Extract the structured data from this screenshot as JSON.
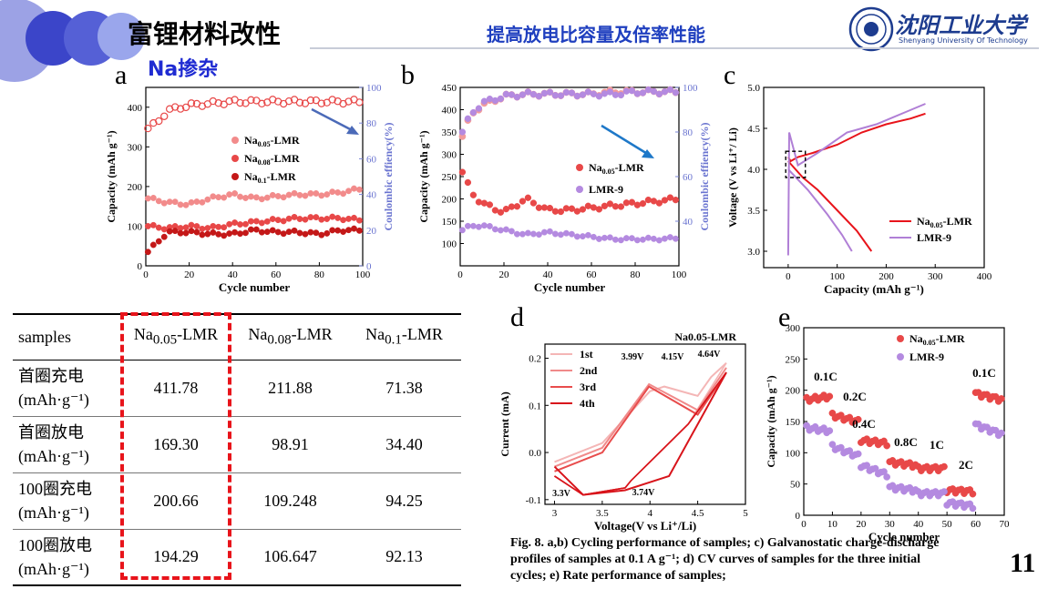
{
  "header": {
    "title": "富锂材料改性",
    "center_title": "提高放电比容量及倍率性能",
    "logo_text": "沈阳工业大学",
    "logo_subtitle": "Shenyang University Of Technology"
  },
  "section_label": "Na掺杂",
  "panel_labels": {
    "a": "a",
    "b": "b",
    "c": "c",
    "d": "d",
    "e": "e"
  },
  "page_number": "11",
  "caption": {
    "line1": "Fig. 8. a,b) Cycling performance of samples; c) Galvanostatic charge-discharge",
    "line2": "profiles of samples at 0.1 A g⁻¹; d) CV curves of samples for the three initial",
    "line3": "cycles; e) Rate performance of samples;"
  },
  "table": {
    "header": [
      "samples",
      "Na0.05-LMR",
      "Na0.08-LMR",
      "Na0.1-LMR"
    ],
    "rows": [
      {
        "label1": "首圈充电",
        "label2": "(mAh·g⁻¹)",
        "values": [
          "411.78",
          "211.88",
          "71.38"
        ]
      },
      {
        "label1": "首圈放电",
        "label2": "(mAh·g⁻¹)",
        "values": [
          "169.30",
          "98.91",
          "34.40"
        ]
      },
      {
        "label1": "100圈充电",
        "label2": "(mAh·g⁻¹)",
        "values": [
          "200.66",
          "109.248",
          "94.25"
        ]
      },
      {
        "label1": "100圈放电",
        "label2": "(mAh·g⁻¹)",
        "values": [
          "194.29",
          "106.647",
          "92.13"
        ]
      }
    ]
  },
  "colors": {
    "red_dash": "#e8141b",
    "title_blue": "#1f3fbf",
    "circle_dark": "#4b55d0",
    "circle_light": "#9aa6ec"
  },
  "chart_data": [
    {
      "id": "a",
      "type": "scatter",
      "xlabel": "Cycle number",
      "ylabel": "Capacity (mAh g⁻¹)",
      "y2label": "Coulombic effiency(%)",
      "xlim": [
        0,
        100
      ],
      "ylim": [
        0,
        450
      ],
      "y2lim": [
        0,
        100
      ],
      "xticks": [
        0,
        20,
        40,
        60,
        80,
        100
      ],
      "yticks": [
        0,
        100,
        200,
        300,
        400
      ],
      "y2ticks": [
        0,
        20,
        40,
        60,
        80,
        100
      ],
      "legend": {
        "placement": "center",
        "entries": [
          "Na0.05-LMR",
          "Na0.08-LMR",
          "Na0.1-LMR"
        ]
      },
      "series": [
        {
          "name": "Na0.05-LMR",
          "color": "#f28b8b",
          "x": [
            1,
            10,
            20,
            30,
            40,
            50,
            60,
            70,
            80,
            90,
            100
          ],
          "values": [
            170,
            160,
            155,
            170,
            180,
            170,
            175,
            180,
            180,
            185,
            195
          ]
        },
        {
          "name": "Na0.08-LMR",
          "color": "#e84848",
          "x": [
            1,
            10,
            20,
            30,
            40,
            50,
            60,
            70,
            80,
            90,
            100
          ],
          "values": [
            100,
            95,
            100,
            95,
            105,
            110,
            115,
            120,
            120,
            120,
            115
          ]
        },
        {
          "name": "Na0.1-LMR",
          "color": "#c41818",
          "x": [
            1,
            10,
            20,
            30,
            40,
            50,
            60,
            70,
            80,
            90,
            100
          ],
          "values": [
            35,
            85,
            85,
            80,
            80,
            90,
            85,
            85,
            80,
            90,
            90
          ]
        },
        {
          "name": "Coulombic efficiency",
          "axis": "y2",
          "color": "#e84848",
          "x": [
            1,
            5,
            10,
            20,
            30,
            40,
            50,
            60,
            70,
            80,
            90,
            100
          ],
          "values": [
            77,
            80,
            87,
            90,
            91,
            92,
            92,
            92,
            92,
            92,
            92,
            92
          ]
        }
      ]
    },
    {
      "id": "b",
      "type": "scatter",
      "xlabel": "Cycle number",
      "ylabel": "Capacity (mAh g⁻¹)",
      "y2label": "Coulombic effiency(%)",
      "xlim": [
        0,
        100
      ],
      "ylim": [
        50,
        450
      ],
      "y2lim": [
        20,
        100
      ],
      "xticks": [
        0,
        20,
        40,
        60,
        80,
        100
      ],
      "yticks": [
        100,
        150,
        200,
        250,
        300,
        350,
        400,
        450
      ],
      "y2ticks": [
        40,
        60,
        80,
        100
      ],
      "legend": {
        "placement": "center",
        "entries": [
          "Na0.05-LMR",
          "LMR-9"
        ]
      },
      "series": [
        {
          "name": "Na0.05-LMR",
          "color": "#e84848",
          "x": [
            1,
            5,
            10,
            20,
            30,
            40,
            50,
            60,
            70,
            80,
            90,
            100
          ],
          "values": [
            260,
            215,
            190,
            170,
            200,
            175,
            175,
            180,
            185,
            190,
            195,
            200
          ]
        },
        {
          "name": "LMR-9",
          "color": "#b48ae0",
          "x": [
            1,
            5,
            10,
            20,
            30,
            40,
            50,
            60,
            70,
            80,
            90,
            100
          ],
          "values": [
            130,
            140,
            140,
            130,
            120,
            125,
            120,
            115,
            110,
            110,
            110,
            112
          ]
        },
        {
          "name": "CE Na0.05-LMR",
          "axis": "y2",
          "color": "#f29b9b",
          "x": [
            1,
            5,
            10,
            20,
            30,
            40,
            50,
            60,
            70,
            80,
            90,
            100
          ],
          "values": [
            78,
            88,
            92,
            96,
            97,
            97,
            97,
            97,
            98,
            98,
            98,
            98
          ]
        },
        {
          "name": "CE LMR-9",
          "axis": "y2",
          "color": "#b48ae0",
          "x": [
            1,
            5,
            10,
            20,
            30,
            40,
            50,
            60,
            70,
            80,
            90,
            100
          ],
          "values": [
            80,
            88,
            93,
            96,
            97,
            97,
            97,
            97,
            97,
            98,
            98,
            98
          ]
        }
      ]
    },
    {
      "id": "c",
      "type": "line",
      "xlabel": "Capacity (mAh g⁻¹)",
      "ylabel": "Voltage (V vs Li⁺/ Li)",
      "xlim": [
        -50,
        400
      ],
      "ylim": [
        2.8,
        5.0
      ],
      "xticks": [
        0,
        100,
        200,
        300,
        400
      ],
      "yticks": [
        3.0,
        3.5,
        4.0,
        4.5,
        5.0
      ],
      "legend": {
        "placement": "bottom-right",
        "entries": [
          "Na0.05-LMR",
          "LMR-9"
        ]
      },
      "series": [
        {
          "name": "Na0.05-LMR charge",
          "color": "#e8141b",
          "x": [
            0,
            5,
            20,
            50,
            100,
            150,
            200,
            250,
            280
          ],
          "values": [
            4.15,
            4.1,
            4.15,
            4.2,
            4.3,
            4.45,
            4.55,
            4.62,
            4.68
          ]
        },
        {
          "name": "Na0.05-LMR discharge",
          "color": "#e8141b",
          "x": [
            0,
            30,
            60,
            100,
            140,
            170
          ],
          "values": [
            4.1,
            3.9,
            3.75,
            3.5,
            3.25,
            3.0
          ]
        },
        {
          "name": "LMR-9 charge",
          "color": "#b07fd6",
          "x": [
            0,
            2,
            20,
            60,
            120,
            180,
            240,
            280
          ],
          "values": [
            2.95,
            4.45,
            4.05,
            4.2,
            4.45,
            4.55,
            4.7,
            4.8
          ]
        },
        {
          "name": "LMR-9 discharge",
          "color": "#b07fd6",
          "x": [
            0,
            40,
            80,
            110,
            130
          ],
          "values": [
            4.0,
            3.75,
            3.45,
            3.2,
            3.0
          ]
        }
      ]
    },
    {
      "id": "d",
      "type": "line",
      "xlabel": "Voltage(V vs Li⁺/Li)",
      "ylabel": "Current (mA)",
      "xlim": [
        2.9,
        5.0
      ],
      "ylim": [
        -0.11,
        0.23
      ],
      "xticks": [
        3.0,
        3.5,
        4.0,
        4.5,
        5.0
      ],
      "yticks": [
        -0.1,
        0.0,
        0.1,
        0.2
      ],
      "title": "Na0.05-LMR",
      "annotations": [
        "3.99V",
        "4.15V",
        "4.64V",
        "3.3V",
        "3.74V"
      ],
      "legend": {
        "placement": "top-left",
        "entries": [
          "1st",
          "2nd",
          "3rd",
          "4th"
        ]
      },
      "series": [
        {
          "name": "1st",
          "color": "#f4b6b6",
          "x": [
            3.0,
            3.5,
            4.0,
            4.15,
            4.5,
            4.64,
            4.8
          ],
          "values": [
            -0.02,
            0.02,
            0.13,
            0.14,
            0.12,
            0.16,
            0.19
          ]
        },
        {
          "name": "2nd",
          "color": "#f08a8a",
          "x": [
            3.0,
            3.5,
            3.99,
            4.5,
            4.8
          ],
          "values": [
            -0.03,
            0.01,
            0.145,
            0.09,
            0.18
          ]
        },
        {
          "name": "3rd",
          "color": "#e84c4c",
          "x": [
            3.0,
            3.5,
            3.99,
            4.5,
            4.8
          ],
          "values": [
            -0.04,
            0.0,
            0.14,
            0.08,
            0.17
          ]
        },
        {
          "name": "4th",
          "color": "#d8141b",
          "x": [
            3.0,
            3.3,
            3.74,
            4.2,
            4.8
          ],
          "values": [
            -0.03,
            -0.09,
            -0.08,
            -0.05,
            0.17
          ]
        }
      ]
    },
    {
      "id": "e",
      "type": "scatter",
      "xlabel": "Cycle number",
      "ylabel": "Capacity (mAh g⁻¹)",
      "xlim": [
        0,
        70
      ],
      "ylim": [
        0,
        300
      ],
      "xticks": [
        0,
        10,
        20,
        30,
        40,
        50,
        60,
        70
      ],
      "yticks": [
        0,
        50,
        100,
        150,
        200,
        250,
        300
      ],
      "annotations": [
        "0.1C",
        "0.2C",
        "0.4C",
        "0.8C",
        "1C",
        "2C",
        "0.1C"
      ],
      "legend": {
        "placement": "top-right",
        "entries": [
          "Na0.05-LMR",
          "LMR-9"
        ]
      },
      "series": [
        {
          "name": "Na0.05-LMR",
          "color": "#e84848",
          "x": [
            2,
            6,
            12,
            16,
            22,
            27,
            32,
            37,
            42,
            47,
            52,
            57,
            62,
            66
          ],
          "values": [
            185,
            190,
            160,
            150,
            120,
            115,
            85,
            80,
            75,
            75,
            40,
            38,
            195,
            185
          ]
        },
        {
          "name": "LMR-9",
          "color": "#b48ae0",
          "x": [
            2,
            6,
            12,
            16,
            22,
            27,
            32,
            37,
            42,
            47,
            52,
            57,
            62,
            66
          ],
          "values": [
            140,
            135,
            110,
            95,
            80,
            65,
            45,
            40,
            35,
            35,
            20,
            15,
            145,
            130
          ]
        }
      ]
    }
  ]
}
